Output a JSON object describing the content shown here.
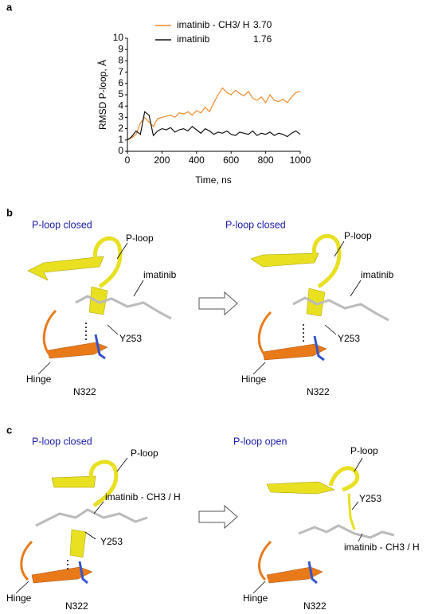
{
  "chart_data": {
    "type": "line",
    "panel_label": "a",
    "xlabel": "Time, ns",
    "ylabel": "RMSD P-loop, Å",
    "x": [
      0,
      25,
      50,
      75,
      100,
      125,
      150,
      175,
      200,
      225,
      250,
      275,
      300,
      325,
      350,
      375,
      400,
      425,
      450,
      475,
      500,
      525,
      550,
      575,
      600,
      625,
      650,
      675,
      700,
      725,
      750,
      775,
      800,
      825,
      850,
      875,
      900,
      925,
      950,
      975,
      1000
    ],
    "series": [
      {
        "name": "imatinib - CH3/ H",
        "mean_label": "3.70",
        "color": "#f0892a",
        "values": [
          1.0,
          1.2,
          1.5,
          2.5,
          3.0,
          2.6,
          2.2,
          2.9,
          3.0,
          3.1,
          3.2,
          3.0,
          3.4,
          3.3,
          3.5,
          3.2,
          3.6,
          3.4,
          3.9,
          3.5,
          4.3,
          5.0,
          5.6,
          5.2,
          5.0,
          5.4,
          5.1,
          4.9,
          5.3,
          4.7,
          4.5,
          4.8,
          4.3,
          5.0,
          4.5,
          4.4,
          4.6,
          4.3,
          4.8,
          5.2,
          5.3
        ]
      },
      {
        "name": "imatinib",
        "mean_label": "1.76",
        "color": "#111111",
        "values": [
          1.0,
          1.3,
          1.8,
          1.5,
          3.5,
          3.2,
          1.4,
          1.8,
          2.0,
          1.9,
          2.1,
          1.7,
          1.9,
          2.0,
          1.8,
          2.2,
          1.9,
          1.6,
          2.0,
          1.8,
          1.5,
          1.7,
          1.6,
          1.8,
          1.5,
          1.4,
          1.7,
          1.6,
          1.5,
          1.8,
          1.4,
          1.6,
          1.5,
          1.7,
          1.4,
          1.6,
          1.5,
          1.3,
          1.6,
          1.8,
          1.5
        ]
      }
    ],
    "xlim": [
      0,
      1000
    ],
    "xticks": [
      0,
      200,
      400,
      600,
      800,
      1000
    ],
    "ylim": [
      0,
      10
    ],
    "yticks": [
      0,
      1,
      2,
      3,
      4,
      5,
      6,
      7,
      8,
      9,
      10
    ]
  },
  "panels": [
    {
      "label": "b",
      "left": {
        "title": "P-loop closed",
        "ploop": "P-loop",
        "ligand": "imatinib",
        "residue": "Y253",
        "hinge": "Hinge",
        "asn": "N322"
      },
      "right": {
        "title": "P-loop closed",
        "ploop": "P-loop",
        "ligand": "imatinib",
        "residue": "Y253",
        "hinge": "Hinge",
        "asn": "N322"
      }
    },
    {
      "label": "c",
      "left": {
        "title": "P-loop closed",
        "ploop": "P-loop",
        "ligand": "imatinib - CH3 / H",
        "residue": "Y253",
        "hinge": "Hinge",
        "asn": "N322"
      },
      "right": {
        "title": "P-loop open",
        "ploop": "P-loop",
        "ligand": "imatinib - CH3 / H",
        "residue": "Y253",
        "hinge": "Hinge",
        "asn": "N322"
      }
    }
  ]
}
